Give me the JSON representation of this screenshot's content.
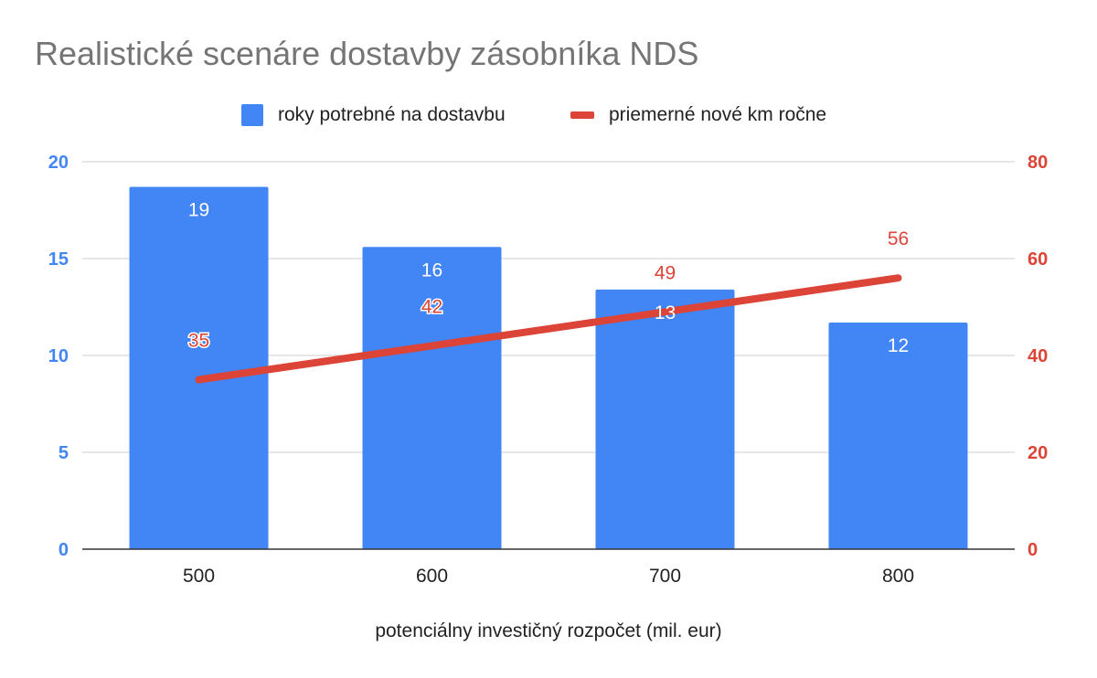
{
  "chart_data": {
    "type": "bar",
    "title": "Realistické scenáre dostavby zásobníka NDS",
    "xlabel": "potenciálny investičný rozpočet (mil. eur)",
    "categories": [
      "500",
      "600",
      "700",
      "800"
    ],
    "series": [
      {
        "name": "roky potrebné na dostavbu",
        "type": "bar",
        "axis": "left",
        "values": [
          18.7,
          15.6,
          13.4,
          11.7
        ],
        "data_labels": [
          "19",
          "16",
          "13",
          "12"
        ]
      },
      {
        "name": "priemerné nové km ročne",
        "type": "line",
        "axis": "right",
        "values": [
          35,
          42,
          49,
          56
        ],
        "data_labels": [
          "35",
          "42",
          "49",
          "56"
        ]
      }
    ],
    "y_left": {
      "range": [
        0,
        20
      ],
      "ticks": [
        "0",
        "5",
        "10",
        "15",
        "20"
      ]
    },
    "y_right": {
      "range": [
        0,
        80
      ],
      "ticks": [
        "0",
        "20",
        "40",
        "60",
        "80"
      ]
    },
    "grid": true,
    "legend_position": "top"
  },
  "colors": {
    "bar": "#4285f4",
    "line": "#db4437",
    "title": "#757575",
    "grid": "#cccccc",
    "axis": "#333333"
  }
}
